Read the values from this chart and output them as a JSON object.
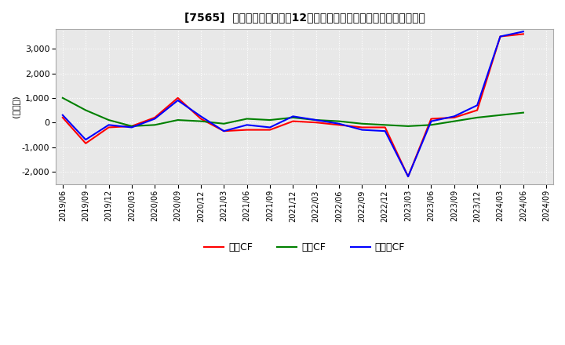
{
  "title": "[7565]  キャッシュフローの12か月移動合計の対前年同期増減額の推移",
  "ylabel": "(百万円)",
  "ylim": [
    -2500,
    3800
  ],
  "yticks": [
    -2000,
    -1000,
    0,
    1000,
    2000,
    3000
  ],
  "background_color": "#ffffff",
  "plot_bg_color": "#e8e8e8",
  "grid_color": "#ffffff",
  "legend_labels": [
    "営業CF",
    "投資CF",
    "フリーCF"
  ],
  "line_colors": [
    "#ff0000",
    "#008000",
    "#0000ff"
  ],
  "dates": [
    "2019/06",
    "2019/09",
    "2019/12",
    "2020/03",
    "2020/06",
    "2020/09",
    "2020/12",
    "2021/03",
    "2021/06",
    "2021/09",
    "2021/12",
    "2022/03",
    "2022/06",
    "2022/09",
    "2022/12",
    "2023/03",
    "2023/06",
    "2023/09",
    "2023/12",
    "2024/03",
    "2024/06",
    "2024/09"
  ],
  "eigyo": [
    200,
    -850,
    -200,
    -150,
    200,
    1000,
    150,
    -350,
    -300,
    -300,
    50,
    0,
    -100,
    -200,
    -200,
    -2200,
    150,
    200,
    500,
    3500,
    3600,
    null
  ],
  "toshi": [
    1000,
    500,
    100,
    -150,
    -100,
    100,
    50,
    -50,
    150,
    100,
    200,
    100,
    50,
    -50,
    -100,
    -150,
    -100,
    50,
    200,
    300,
    400,
    null
  ],
  "free": [
    300,
    -700,
    -100,
    -200,
    150,
    900,
    250,
    -350,
    -100,
    -200,
    250,
    100,
    -50,
    -300,
    -350,
    -2200,
    50,
    250,
    700,
    3500,
    3700,
    null
  ]
}
